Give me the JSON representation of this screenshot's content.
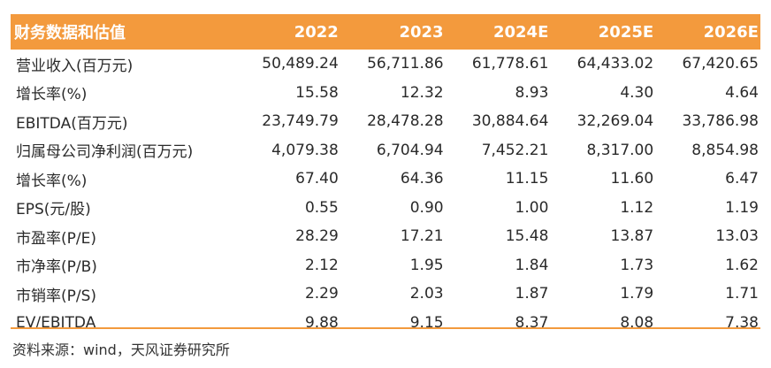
{
  "table": {
    "header": [
      "财务数据和估值",
      "2022",
      "2023",
      "2024E",
      "2025E",
      "2026E"
    ],
    "rows": [
      [
        "营业收入(百万元)",
        "50,489.24",
        "56,711.86",
        "61,778.61",
        "64,433.02",
        "67,420.65"
      ],
      [
        "增长率(%)",
        "15.58",
        "12.32",
        "8.93",
        "4.30",
        "4.64"
      ],
      [
        "EBITDA(百万元)",
        "23,749.79",
        "28,478.28",
        "30,884.64",
        "32,269.04",
        "33,786.98"
      ],
      [
        "归属母公司净利润(百万元)",
        "4,079.38",
        "6,704.94",
        "7,452.21",
        "8,317.00",
        "8,854.98"
      ],
      [
        "增长率(%)",
        "67.40",
        "64.36",
        "11.15",
        "11.60",
        "6.47"
      ],
      [
        "EPS(元/股)",
        "0.55",
        "0.90",
        "1.00",
        "1.12",
        "1.19"
      ],
      [
        "市盈率(P/E)",
        "28.29",
        "17.21",
        "15.48",
        "13.87",
        "13.03"
      ],
      [
        "市净率(P/B)",
        "2.12",
        "1.95",
        "1.84",
        "1.73",
        "1.62"
      ],
      [
        "市销率(P/S)",
        "2.29",
        "2.03",
        "1.87",
        "1.79",
        "1.71"
      ],
      [
        "EV/EBITDA",
        "9.88",
        "9.15",
        "8.37",
        "8.08",
        "7.38"
      ]
    ]
  },
  "source": "资料来源：wind，天风证券研究所",
  "colors": {
    "header_bg": "#f39a3d",
    "header_text": "#ffffff",
    "rule": "#f39a3d"
  }
}
